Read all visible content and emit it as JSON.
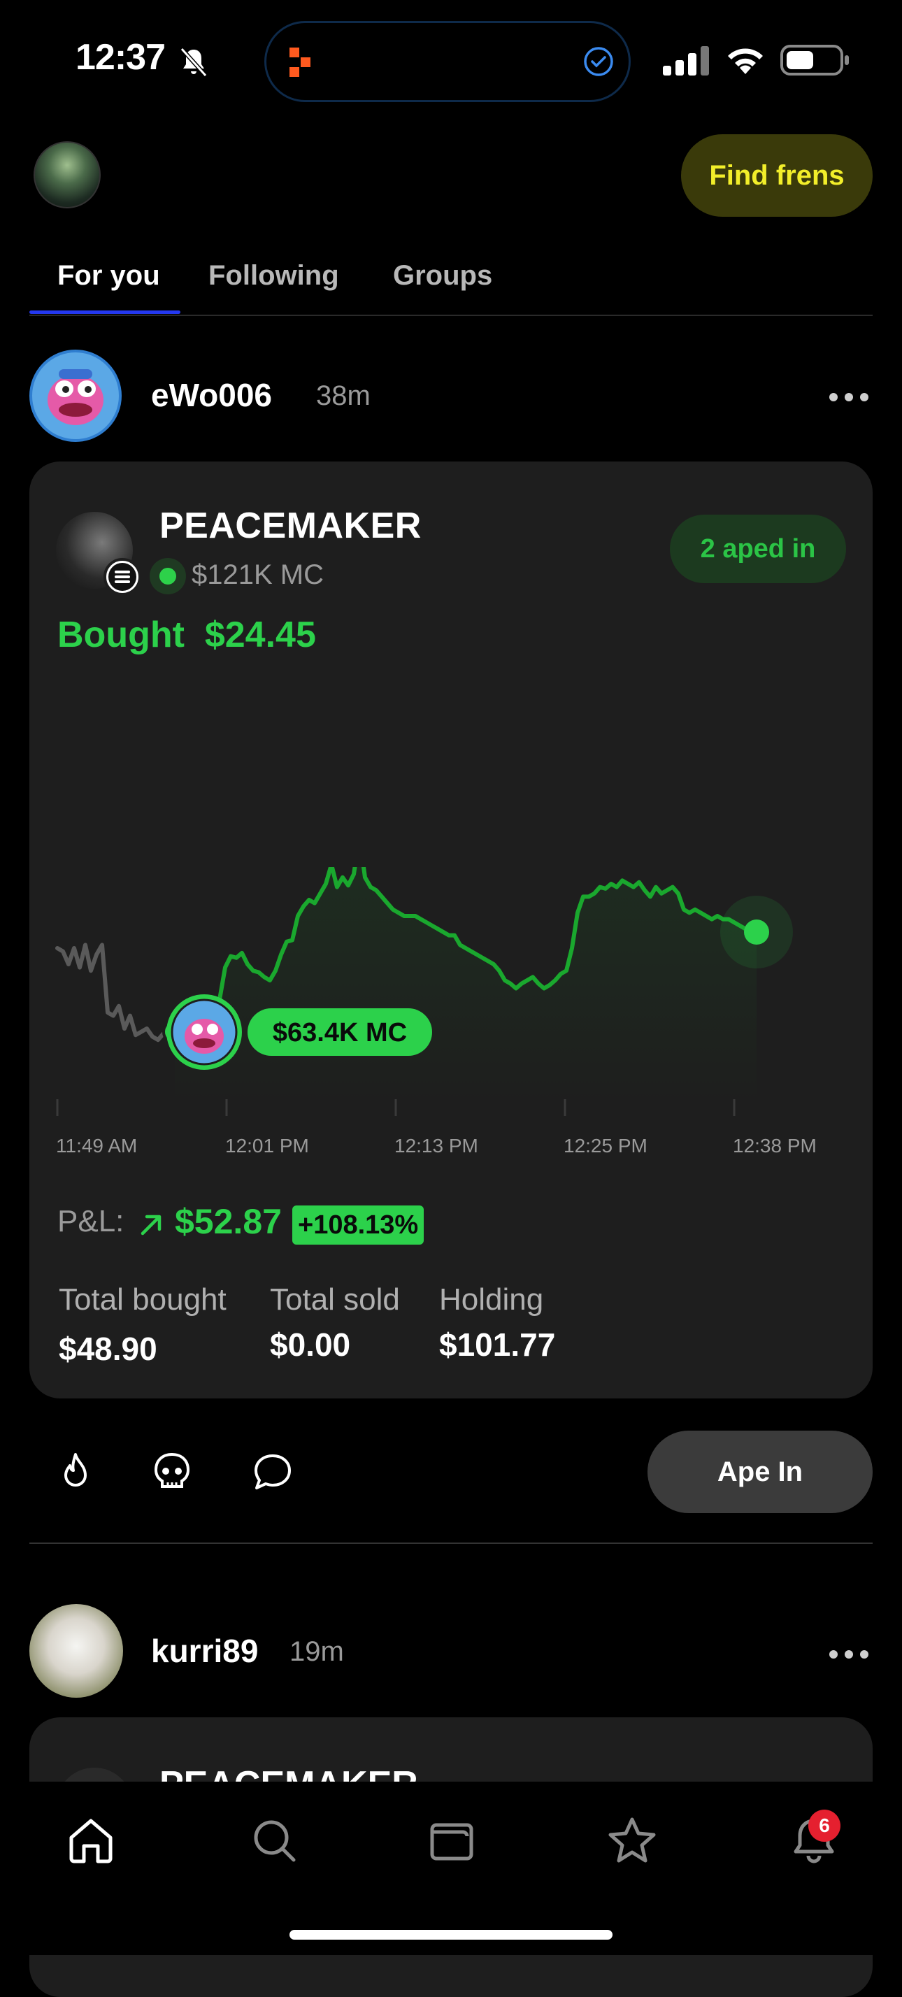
{
  "status_bar": {
    "time": "12:37"
  },
  "header": {
    "find_frens_label": "Find frens"
  },
  "tabs": [
    {
      "label": "For you",
      "active": true
    },
    {
      "label": "Following",
      "active": false
    },
    {
      "label": "Groups",
      "active": false
    }
  ],
  "posts": [
    {
      "username": "eWo006",
      "time_ago": "38m",
      "token": {
        "name": "PEACEMAKER",
        "market_cap": "$121K MC"
      },
      "aped_in": "2 aped in",
      "bought_label": "Bought",
      "bought_amount": "$24.45",
      "entry_marker": "$63.4K MC",
      "pnl": {
        "label": "P&L:",
        "value": "$52.87",
        "percent": "+108.13%"
      },
      "stats": [
        {
          "label": "Total bought",
          "value": "$48.90"
        },
        {
          "label": "Total sold",
          "value": "$0.00"
        },
        {
          "label": "Holding",
          "value": "$101.77"
        }
      ],
      "ape_in_label": "Ape In"
    },
    {
      "username": "kurri89",
      "time_ago": "19m",
      "token": {
        "name": "PEACEMAKER"
      }
    }
  ],
  "chart_data": {
    "type": "line",
    "x_ticks": [
      "11:49 AM",
      "12:01 PM",
      "12:13 PM",
      "12:25 PM",
      "12:38 PM"
    ],
    "series": [
      {
        "values": [
          80,
          78,
          70,
          80,
          68,
          82,
          66,
          76,
          82,
          40,
          38,
          44,
          30,
          38,
          26,
          28,
          30,
          25,
          23,
          27,
          25,
          28,
          30,
          34,
          36,
          33,
          38,
          44,
          45,
          48,
          68,
          75,
          74,
          77,
          70,
          66,
          65,
          62,
          60,
          66,
          76,
          84,
          85,
          100,
          106,
          110,
          108,
          114,
          120,
          132,
          118,
          124,
          119,
          126,
          150,
          124,
          118,
          116,
          112,
          108,
          104,
          102,
          100,
          100,
          100,
          98,
          96,
          94,
          92,
          90,
          88,
          88,
          82,
          80,
          78,
          76,
          74,
          72,
          70,
          66,
          60,
          58,
          55,
          58,
          60,
          62,
          58,
          55,
          57,
          60,
          64,
          66,
          80,
          102,
          112,
          112,
          114,
          118,
          117,
          120,
          118,
          122,
          120,
          118,
          121,
          116,
          112,
          118,
          114,
          116,
          118,
          114,
          104,
          102,
          104,
          102,
          100,
          98,
          100,
          98,
          98,
          96,
          94,
          92,
          90,
          90
        ]
      }
    ],
    "entry_index": 21,
    "colors": {
      "line_pre": "#5a5a5a",
      "line": "#1aa82e",
      "dot": "#2cd14b"
    }
  },
  "bottom_nav": {
    "notification_count": "6"
  }
}
